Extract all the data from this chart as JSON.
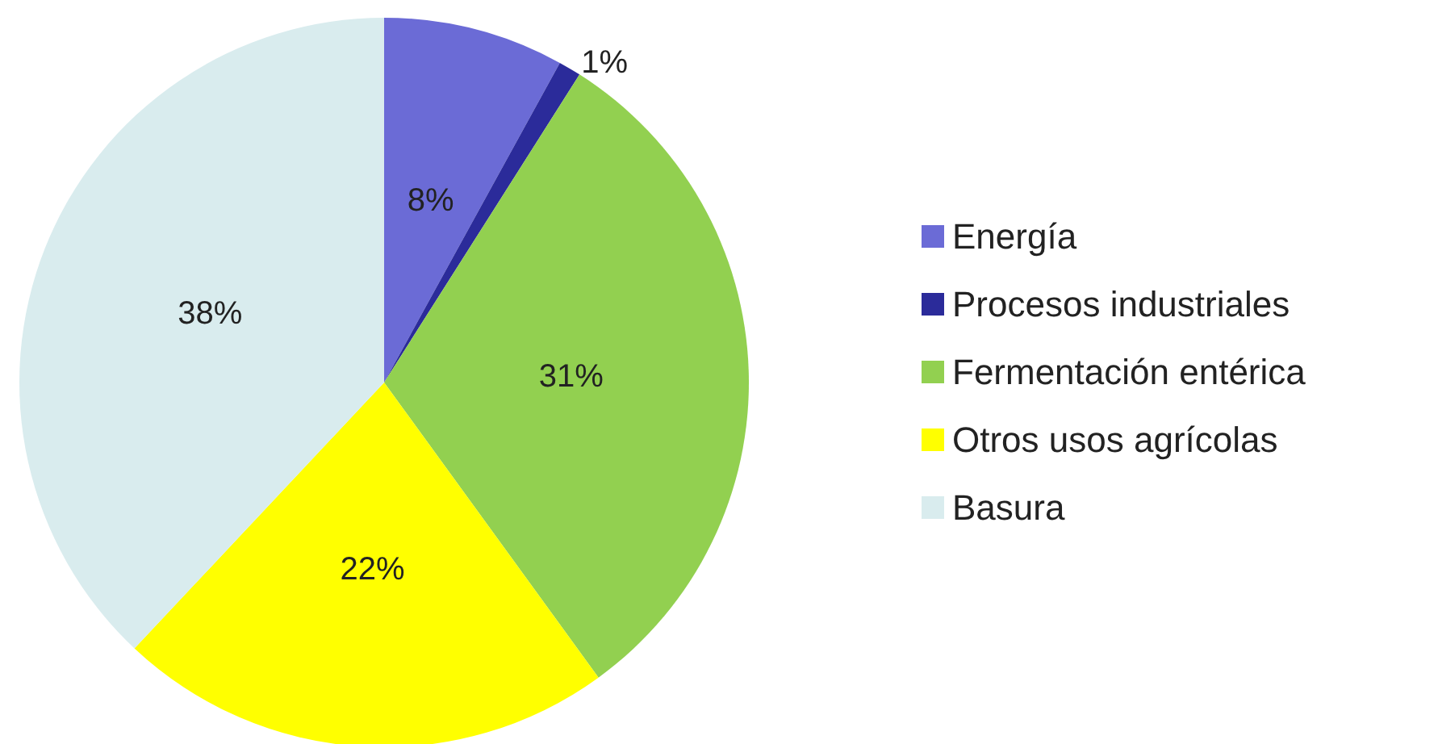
{
  "chart_data": {
    "type": "pie",
    "categories": [
      "Energía",
      "Procesos industriales",
      "Fermentación entérica",
      "Otros usos agrícolas",
      "Basura"
    ],
    "values": [
      8,
      1,
      31,
      22,
      38
    ],
    "colors": [
      "#6b6bd6",
      "#2b2b9a",
      "#92d050",
      "#ffff00",
      "#d9ecee"
    ],
    "value_labels": [
      "8%",
      "1%",
      "31%",
      "22%",
      "38%"
    ],
    "legend": "right"
  }
}
